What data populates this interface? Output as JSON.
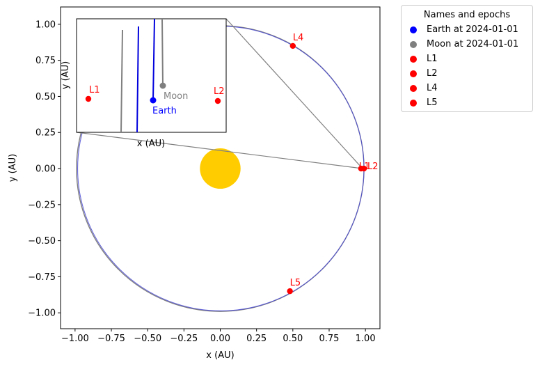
{
  "chart_data": {
    "type": "scatter",
    "xlabel": "x (AU)",
    "ylabel": "y (AU)",
    "xlim": [
      -1.1,
      1.1
    ],
    "ylim": [
      -1.11,
      1.12
    ],
    "xticks": [
      -1.0,
      -0.75,
      -0.5,
      -0.25,
      0.0,
      0.25,
      0.5,
      0.75,
      1.0
    ],
    "yticks": [
      -1.0,
      -0.75,
      -0.5,
      -0.25,
      0.0,
      0.25,
      0.5,
      0.75,
      1.0
    ],
    "xtick_labels": [
      "−1.00",
      "−0.75",
      "−0.50",
      "−0.25",
      "0.00",
      "0.25",
      "0.50",
      "0.75",
      "1.00"
    ],
    "ytick_labels": [
      "−1.00",
      "−0.75",
      "−0.50",
      "−0.25",
      "0.00",
      "0.25",
      "0.50",
      "0.75",
      "1.00"
    ],
    "sun": {
      "x": 0.0,
      "y": 0.0,
      "radius": 0.14,
      "color": "#ffcc00"
    },
    "orbit": {
      "radius": 0.99,
      "earth_color": "#4b4bd6",
      "moon_color": "#7f7f7f"
    },
    "points": [
      {
        "label": "L1",
        "x": 0.97,
        "y": 0.0
      },
      {
        "label": "L2",
        "x": 0.99,
        "y": 0.0
      },
      {
        "label": "L4",
        "x": 0.5,
        "y": 0.85
      },
      {
        "label": "L5",
        "x": 0.48,
        "y": -0.85
      }
    ],
    "connector_points": [
      {
        "x": 0.98,
        "y": 0.0
      }
    ],
    "point_color": "#ff0000",
    "inset": {
      "xlabel": "x (AU)",
      "ylabel": "y (AU)",
      "earth": {
        "label": "Earth",
        "color": "#0000ff"
      },
      "moon": {
        "label": "Moon",
        "color": "#7f7f7f"
      },
      "l1_label": "L1",
      "l2_label": "L2"
    },
    "legend": {
      "title": "Names and epochs",
      "placement": "outside-upper-right",
      "entries": [
        {
          "label": "Earth at 2024-01-01",
          "color": "#0000ff"
        },
        {
          "label": "Moon at 2024-01-01",
          "color": "#7f7f7f"
        },
        {
          "label": "L1",
          "color": "#ff0000"
        },
        {
          "label": "L2",
          "color": "#ff0000"
        },
        {
          "label": "L4",
          "color": "#ff0000"
        },
        {
          "label": "L5",
          "color": "#ff0000"
        }
      ]
    }
  }
}
